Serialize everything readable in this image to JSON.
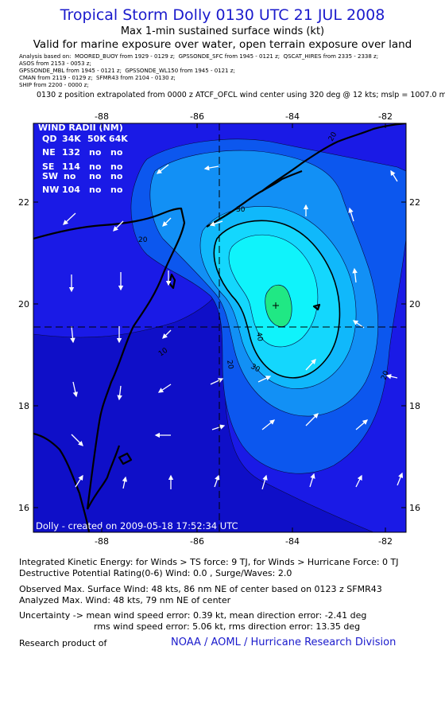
{
  "title": "Tropical Storm Dolly 0130 UTC 21 JUL 2008",
  "subtitle": "Max 1-min sustained surface winds (kt)",
  "valid_for": "Valid for marine exposure over water, open terrain exposure over land",
  "analysis_lines": [
    "Analysis based on:  MOORED_BUOY from 1929 - 0129 z;  GPSSONDE_SFC from 1945 - 0121 z;  QSCAT_HIRES from 2335 - 2338 z;",
    "ASOS from 2153 - 0053 z;",
    "GPSSONDE_MBL from 1945 - 0121 z;  GPSSONDE_WL150 from 1945 - 0121 z;",
    "CMAN from 2119 - 0129 z;  SFMR43 from 2104 - 0130 z;",
    "SHIP from 2200 - 0000 z;"
  ],
  "position_note": "0130 z position extrapolated from 0000 z ATCF_OFCL wind center using 320 deg @ 12 kts; mslp = 1007.0 mb",
  "map": {
    "lon_ticks": [
      "-88",
      "-86",
      "-84",
      "-82"
    ],
    "lat_ticks": [
      "22",
      "20",
      "18",
      "16"
    ],
    "wind_radii": {
      "title": "WIND RADII (NM)",
      "header": [
        "QD",
        "34K",
        "50K",
        "64K"
      ],
      "rows": [
        [
          "NE",
          "132",
          "no",
          "no"
        ],
        [
          "SE",
          "114",
          "no",
          "no"
        ],
        [
          "SW",
          "no",
          "no",
          "no"
        ],
        [
          "NW",
          "104",
          "no",
          "no"
        ]
      ]
    },
    "contour_labels": [
      "20",
      "30",
      "20",
      "10",
      "40",
      "30",
      "20",
      "20"
    ],
    "credit": "Dolly - created on 2009-05-18 17:52:34 UTC",
    "colors": {
      "background": "#1a1ae6",
      "low": "#0f0fc8",
      "ring1": "#0c57ee",
      "ring2": "#1290f5",
      "ring3": "#10b8fb",
      "ring4": "#14d7fd",
      "ring5": "#0ff3fb",
      "core": "#20e884",
      "land": "#000000",
      "arrow": "#ffffff"
    }
  },
  "stats": {
    "ike": "Integrated Kinetic Energy:  for Winds > TS force: 9 TJ,  for Winds > Hurricane Force: 0 TJ",
    "dpr": "Destructive Potential Rating(0-6)   Wind: 0.0 , Surge/Waves: 2.0",
    "obs_max": "Observed Max. Surface Wind: 48 kts, 86 nm NE of center based on 0123 z SFMR43",
    "ana_max": "Analyzed Max. Wind: 48 kts, 79 nm NE of center",
    "unc1": "Uncertainty -> mean wind speed error: 0.39 kt,   mean direction error:  -2.41 deg",
    "unc2": "rms wind speed error: 5.06 kt,   rms direction error: 13.35 deg"
  },
  "research": "Research product of",
  "org": "NOAA / AOML / Hurricane Research Division"
}
